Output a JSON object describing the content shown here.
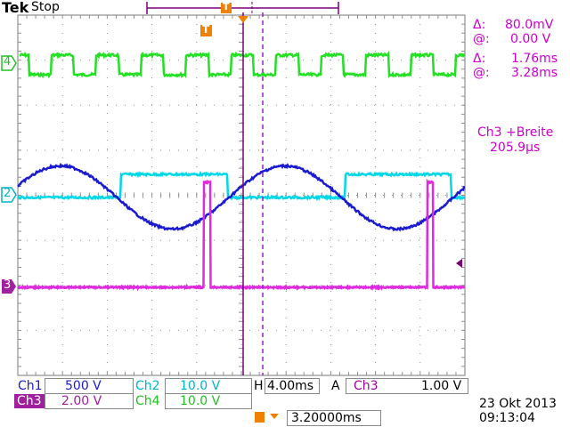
{
  "header": {
    "brand": "Tek",
    "status": "Stop",
    "trigger_marker": "T"
  },
  "channel_markers": {
    "ch4": "4",
    "ch2": "2",
    "ch3": "3"
  },
  "cursor_readout": {
    "delta_v_symbol": "Δ:",
    "delta_v_value": "80.0mV",
    "at_v_symbol": "@:",
    "at_v_value": "0.00 V",
    "delta_t_symbol": "Δ:",
    "delta_t_value": "1.76ms",
    "at_t_symbol": "@:",
    "at_t_value": "3.28ms"
  },
  "measurement": {
    "label": "Ch3 +Breite",
    "value": "205.9µs"
  },
  "bottom_bar": {
    "ch1_label": "Ch1",
    "ch1_value": "500 V",
    "ch2_label": "Ch2",
    "ch2_value": "10.0 V",
    "horizontal_label": "H",
    "horizontal_value": "4.00ms",
    "acq_mode": "A",
    "trig_source": "Ch3",
    "trig_slope_icon": "rising-edge-icon",
    "trig_level": "1.00 V",
    "ch3_label": "Ch3",
    "ch3_value": "2.00 V",
    "ch4_label": "Ch4",
    "ch4_value": "10.0 V",
    "ch4_coupling_icon": "ac-coupling-icon",
    "trigger_position": "3.20000ms",
    "date": "23 Okt  2013",
    "time": "09:13:04"
  },
  "colors": {
    "ch1": "#1a1ad0",
    "ch2": "#00d8e8",
    "ch3": "#e02ae0",
    "ch4": "#22e022",
    "grid": "#909090",
    "cursor": "#7a007a",
    "trigger": "#f08000"
  },
  "graticule": {
    "h_divisions": 10,
    "v_divisions": 8
  }
}
